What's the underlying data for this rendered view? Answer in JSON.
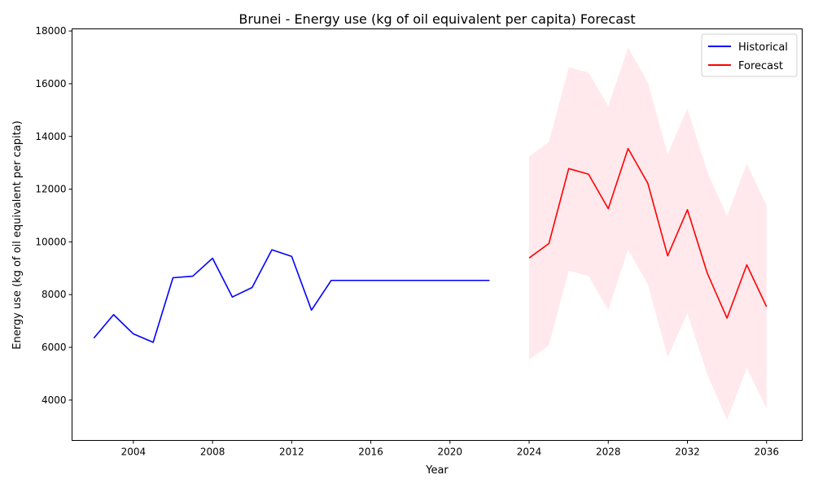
{
  "chart_data": {
    "type": "line",
    "title": "Brunei - Energy use (kg of oil equivalent per capita) Forecast",
    "xlabel": "Year",
    "ylabel": "Energy use (kg of oil equivalent per capita)",
    "xlim": [
      2000.9,
      2037.8
    ],
    "ylim": [
      2470,
      18080
    ],
    "xticks": [
      2004,
      2008,
      2012,
      2016,
      2020,
      2024,
      2028,
      2032,
      2036
    ],
    "yticks": [
      4000,
      6000,
      8000,
      10000,
      12000,
      14000,
      16000,
      18000
    ],
    "legend_position": "top-right",
    "grid": false,
    "series": [
      {
        "name": "Historical",
        "color": "#0000ff",
        "x": [
          2002,
          2003,
          2004,
          2005,
          2006,
          2007,
          2008,
          2009,
          2010,
          2011,
          2012,
          2013,
          2014,
          2015,
          2016,
          2017,
          2018,
          2019,
          2020,
          2021,
          2022
        ],
        "y": [
          6350,
          7240,
          6510,
          6190,
          8640,
          8700,
          9380,
          7910,
          8270,
          9700,
          9450,
          7410,
          8540,
          8540,
          8540,
          8540,
          8540,
          8540,
          8540,
          8540,
          8540
        ]
      },
      {
        "name": "Forecast",
        "color": "#ff0000",
        "x": [
          2024,
          2025,
          2026,
          2027,
          2028,
          2029,
          2030,
          2031,
          2032,
          2033,
          2034,
          2035,
          2036
        ],
        "y": [
          9390,
          9940,
          12780,
          12570,
          11260,
          13540,
          12220,
          9470,
          11220,
          8820,
          7110,
          9130,
          7540
        ],
        "band_upper": [
          13240,
          13790,
          16620,
          16430,
          15140,
          17380,
          16050,
          13330,
          15060,
          12670,
          10980,
          12970,
          11380
        ],
        "band_lower": [
          5540,
          6080,
          8910,
          8710,
          7410,
          9700,
          8390,
          5630,
          7290,
          4980,
          3240,
          5220,
          3680
        ],
        "band_color": "#ffc0cb"
      }
    ]
  }
}
